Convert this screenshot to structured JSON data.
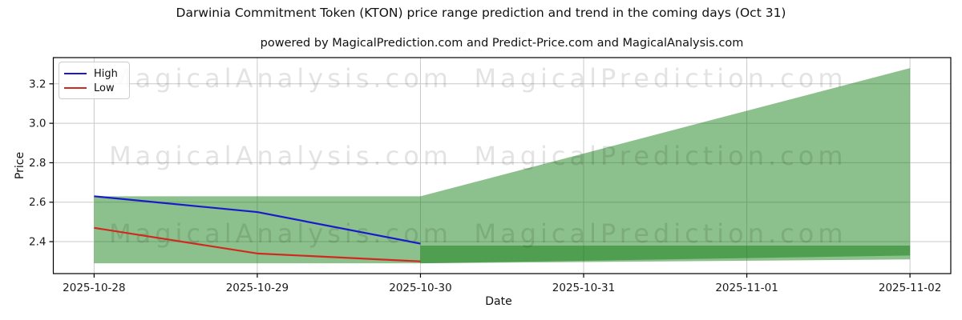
{
  "chart_data": {
    "type": "line",
    "title": "Darwinia Commitment Token (KTON) price range prediction and trend in the coming days (Oct 31)",
    "subtitle": "powered by MagicalPrediction.com and Predict-Price.com and MagicalAnalysis.com",
    "xlabel": "Date",
    "ylabel": "Price",
    "categories": [
      "2025-10-28",
      "2025-10-29",
      "2025-10-30",
      "2025-10-31",
      "2025-11-01",
      "2025-11-02"
    ],
    "yticks": [
      2.4,
      2.6,
      2.8,
      3.0,
      3.2
    ],
    "ylim": [
      2.238,
      3.333
    ],
    "grid": true,
    "legend_position": "upper left",
    "series": [
      {
        "name": "High",
        "color": "#1a1acd",
        "x": [
          0,
          1,
          2
        ],
        "values": [
          2.63,
          2.55,
          2.39
        ]
      },
      {
        "name": "Low",
        "color": "#d02a20",
        "x": [
          0,
          1,
          2
        ],
        "values": [
          2.47,
          2.34,
          2.3
        ]
      }
    ],
    "bands": [
      {
        "name": "observed-range-band",
        "x": [
          0,
          2
        ],
        "top": [
          2.63,
          2.63
        ],
        "bottom": [
          2.29,
          2.29
        ]
      },
      {
        "name": "forecast-range-band",
        "x": [
          2,
          5
        ],
        "top": [
          2.63,
          3.28
        ],
        "bottom": [
          2.29,
          2.31
        ]
      },
      {
        "name": "forecast-trend-band",
        "x": [
          2,
          5
        ],
        "top": [
          2.38,
          2.38
        ],
        "bottom": [
          2.29,
          2.33
        ]
      }
    ],
    "band_fill": "rgba(15,123,15,0.48)",
    "grid_color": "#c9c9c9",
    "spine_color": "#000000",
    "tick_label_color": "#1a1a1a"
  },
  "watermarks": {
    "left": "MagicalAnalysis.com",
    "right": "MagicalPrediction.com",
    "color": "rgba(0,0,0,0.11)"
  }
}
